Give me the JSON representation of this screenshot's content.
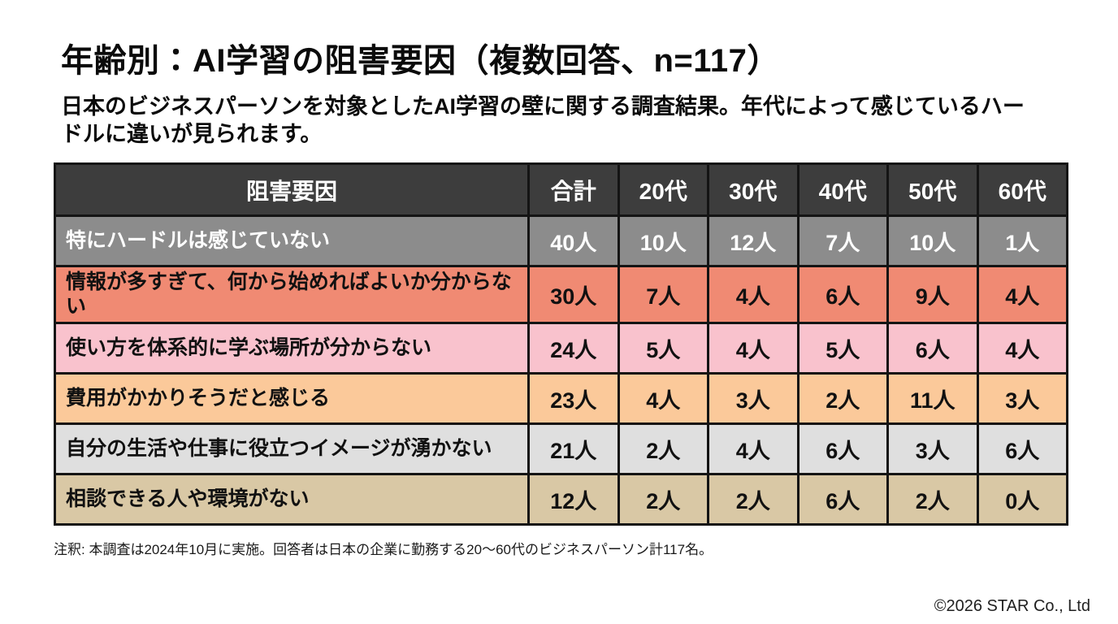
{
  "title": "年齢別：AI学習の阻害要因（複数回答、n=117）",
  "subtitle": "日本のビジネスパーソンを対象としたAI学習の壁に関する調査結果。年代によって感じているハードルに違いが見られます。",
  "table": {
    "header_bg": "#3d3d3d",
    "header_text_color": "#ffffff",
    "border_color": "#141414",
    "columns": [
      "阻害要因",
      "合計",
      "20代",
      "30代",
      "40代",
      "50代",
      "60代"
    ],
    "rows": [
      {
        "label": "特にハードルは感じていない",
        "values": [
          "40人",
          "10人",
          "12人",
          "7人",
          "10人",
          "1人"
        ],
        "bg": "#8c8c8c",
        "text_color": "#ffffff"
      },
      {
        "label": "情報が多すぎて、何から始めればよいか分からない",
        "values": [
          "30人",
          "7人",
          "4人",
          "6人",
          "9人",
          "4人"
        ],
        "bg": "#f08a73",
        "text_color": "#111111"
      },
      {
        "label": "使い方を体系的に学ぶ場所が分からない",
        "values": [
          "24人",
          "5人",
          "4人",
          "5人",
          "6人",
          "4人"
        ],
        "bg": "#f9c2cd",
        "text_color": "#111111"
      },
      {
        "label": "費用がかかりそうだと感じる",
        "values": [
          "23人",
          "4人",
          "3人",
          "2人",
          "11人",
          "3人"
        ],
        "bg": "#fbc99a",
        "text_color": "#111111"
      },
      {
        "label": "自分の生活や仕事に役立つイメージが湧かない",
        "values": [
          "21人",
          "2人",
          "4人",
          "6人",
          "3人",
          "6人"
        ],
        "bg": "#dfdfdf",
        "text_color": "#111111"
      },
      {
        "label": "相談できる人や環境がない",
        "values": [
          "12人",
          "2人",
          "2人",
          "6人",
          "2人",
          "0人"
        ],
        "bg": "#d9c8a5",
        "text_color": "#111111"
      }
    ]
  },
  "footnote": "注釈: 本調査は2024年10月に実施。回答者は日本の企業に勤務する20〜60代のビジネスパーソン計117名。",
  "copyright": "©2026 STAR Co., Ltd",
  "chart_data": {
    "type": "table",
    "title": "年齢別：AI学習の阻害要因（複数回答、n=117）",
    "n": 117,
    "columns": [
      "阻害要因",
      "合計",
      "20代",
      "30代",
      "40代",
      "50代",
      "60代"
    ],
    "rows": [
      {
        "factor": "特にハードルは感じていない",
        "total": 40,
        "by_age": {
          "20代": 10,
          "30代": 12,
          "40代": 7,
          "50代": 10,
          "60代": 1
        }
      },
      {
        "factor": "情報が多すぎて、何から始めればよいか分からない",
        "total": 30,
        "by_age": {
          "20代": 7,
          "30代": 4,
          "40代": 6,
          "50代": 9,
          "60代": 4
        }
      },
      {
        "factor": "使い方を体系的に学ぶ場所が分からない",
        "total": 24,
        "by_age": {
          "20代": 5,
          "30代": 4,
          "40代": 5,
          "50代": 6,
          "60代": 4
        }
      },
      {
        "factor": "費用がかかりそうだと感じる",
        "total": 23,
        "by_age": {
          "20代": 4,
          "30代": 3,
          "40代": 2,
          "50代": 11,
          "60代": 3
        }
      },
      {
        "factor": "自分の生活や仕事に役立つイメージが湧かない",
        "total": 21,
        "by_age": {
          "20代": 2,
          "30代": 4,
          "40代": 6,
          "50代": 3,
          "60代": 6
        }
      },
      {
        "factor": "相談できる人や環境がない",
        "total": 12,
        "by_age": {
          "20代": 2,
          "30代": 2,
          "40代": 6,
          "50代": 2,
          "60代": 0
        }
      }
    ],
    "unit": "人"
  }
}
